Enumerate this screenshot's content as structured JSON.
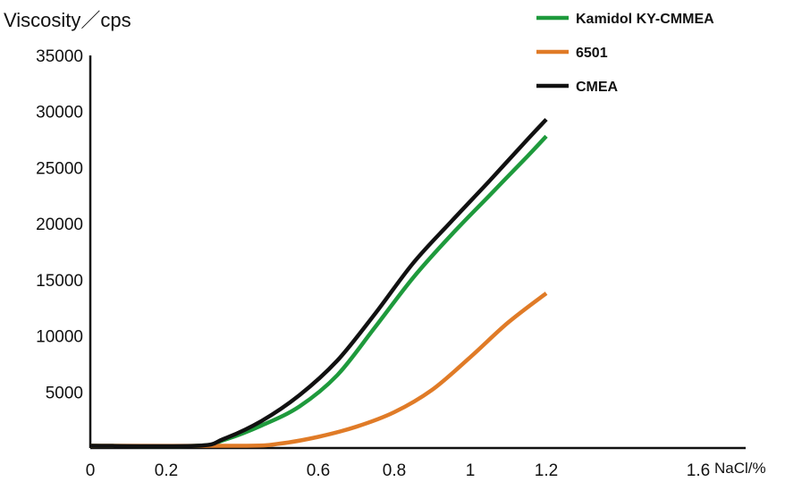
{
  "chart_data": {
    "type": "line",
    "title": "",
    "ylabel": "Viscosity／cps",
    "xlabel": "NaCl/%",
    "xlim": [
      0,
      1.8
    ],
    "ylim": [
      0,
      35000
    ],
    "x_ticks": [
      0,
      0.2,
      0.6,
      0.8,
      1,
      1.2,
      1.6
    ],
    "x_tick_labels": [
      "0",
      "0.2",
      "0.6",
      "0.8",
      "1",
      "1.2",
      "1.6"
    ],
    "y_ticks": [
      5000,
      10000,
      15000,
      20000,
      25000,
      30000,
      35000
    ],
    "y_tick_labels": [
      "5000",
      "10000",
      "15000",
      "20000",
      "25000",
      "30000",
      "35000"
    ],
    "grid": false,
    "legend_position": "top-right",
    "series": [
      {
        "name": "Kamidol KY-CMMEA",
        "color": "#1e9a3c",
        "points": [
          [
            0,
            200
          ],
          [
            0.28,
            200
          ],
          [
            0.35,
            700
          ],
          [
            0.45,
            2000
          ],
          [
            0.55,
            3700
          ],
          [
            0.65,
            6500
          ],
          [
            0.75,
            10800
          ],
          [
            0.85,
            15200
          ],
          [
            0.95,
            19000
          ],
          [
            1.05,
            22500
          ],
          [
            1.15,
            26000
          ],
          [
            1.2,
            27800
          ]
        ]
      },
      {
        "name": "6501",
        "color": "#e07b27",
        "points": [
          [
            0,
            200
          ],
          [
            0.4,
            200
          ],
          [
            0.5,
            400
          ],
          [
            0.6,
            1000
          ],
          [
            0.7,
            1900
          ],
          [
            0.8,
            3200
          ],
          [
            0.9,
            5200
          ],
          [
            1.0,
            8100
          ],
          [
            1.1,
            11200
          ],
          [
            1.2,
            13800
          ]
        ]
      },
      {
        "name": "CMEA",
        "color": "#111111",
        "points": [
          [
            0,
            200
          ],
          [
            0.28,
            200
          ],
          [
            0.35,
            800
          ],
          [
            0.45,
            2400
          ],
          [
            0.55,
            4700
          ],
          [
            0.65,
            7800
          ],
          [
            0.75,
            12000
          ],
          [
            0.85,
            16500
          ],
          [
            0.95,
            20200
          ],
          [
            1.05,
            23800
          ],
          [
            1.15,
            27500
          ],
          [
            1.2,
            29300
          ]
        ]
      }
    ]
  }
}
